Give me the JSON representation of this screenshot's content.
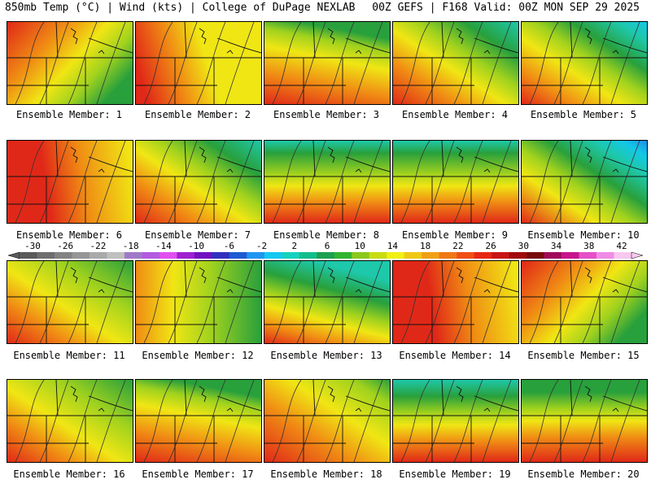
{
  "header": {
    "left": "850mb Temp (°C) | Wind (kts) | College of DuPage NEXLAB",
    "right": "00Z GEFS | F168 Valid: 00Z MON SEP 29 2025"
  },
  "members": [
    {
      "label": "Ensemble Member: 1",
      "style": "warm-w"
    },
    {
      "label": "Ensemble Member: 2",
      "style": "hot"
    },
    {
      "label": "Ensemble Member: 3",
      "style": "warm-s"
    },
    {
      "label": "Ensemble Member: 4",
      "style": "cool-ne"
    },
    {
      "label": "Ensemble Member: 5",
      "style": "cool-ne2"
    },
    {
      "label": "Ensemble Member: 6",
      "style": "hot2"
    },
    {
      "label": "Ensemble Member: 7",
      "style": "cool-ne"
    },
    {
      "label": "Ensemble Member: 8",
      "style": "cool-n"
    },
    {
      "label": "Ensemble Member: 9",
      "style": "cool-n"
    },
    {
      "label": "Ensemble Member: 10",
      "style": "cold-ne"
    },
    {
      "label": "Ensemble Member: 11",
      "style": "mild"
    },
    {
      "label": "Ensemble Member: 12",
      "style": "mild-e"
    },
    {
      "label": "Ensemble Member: 13",
      "style": "cool-n2"
    },
    {
      "label": "Ensemble Member: 14",
      "style": "hot2"
    },
    {
      "label": "Ensemble Member: 15",
      "style": "warm-w"
    },
    {
      "label": "Ensemble Member: 16",
      "style": "mild"
    },
    {
      "label": "Ensemble Member: 17",
      "style": "warm-s"
    },
    {
      "label": "Ensemble Member: 18",
      "style": "warm-sw"
    },
    {
      "label": "Ensemble Member: 19",
      "style": "cool-n3"
    },
    {
      "label": "Ensemble Member: 20",
      "style": "cool-n4"
    }
  ],
  "colorbar": {
    "labels": [
      "-30",
      "-26",
      "-22",
      "-18",
      "-14",
      "-10",
      "-6",
      "-2",
      "2",
      "6",
      "10",
      "14",
      "18",
      "22",
      "26",
      "30",
      "34",
      "38",
      "42"
    ],
    "colors": [
      "#5a5a5a",
      "#6e6e6e",
      "#828282",
      "#969696",
      "#aaaaaa",
      "#c0c0c0",
      "#a07ac8",
      "#b45ae0",
      "#e050f0",
      "#a020d0",
      "#7010c0",
      "#3030c0",
      "#1e5ad2",
      "#1e96f0",
      "#14c8f0",
      "#14d2be",
      "#14be8c",
      "#1ea050",
      "#32b432",
      "#8cc81e",
      "#c8dc14",
      "#f0f014",
      "#f0c814",
      "#f0a014",
      "#f07814",
      "#f05014",
      "#e62814",
      "#c81414",
      "#a00a0a",
      "#780a0a",
      "#a00a5a",
      "#c8148c",
      "#e650c8",
      "#f08ce6",
      "#f8c8f0"
    ]
  },
  "colors": {
    "red": "#e02818",
    "orange": "#f08c14",
    "yellow": "#f0e614",
    "lime": "#a0d21e",
    "green": "#28a03c",
    "teal": "#1ec8aa",
    "cyan": "#14c8e6",
    "blue": "#1e8ce6"
  }
}
